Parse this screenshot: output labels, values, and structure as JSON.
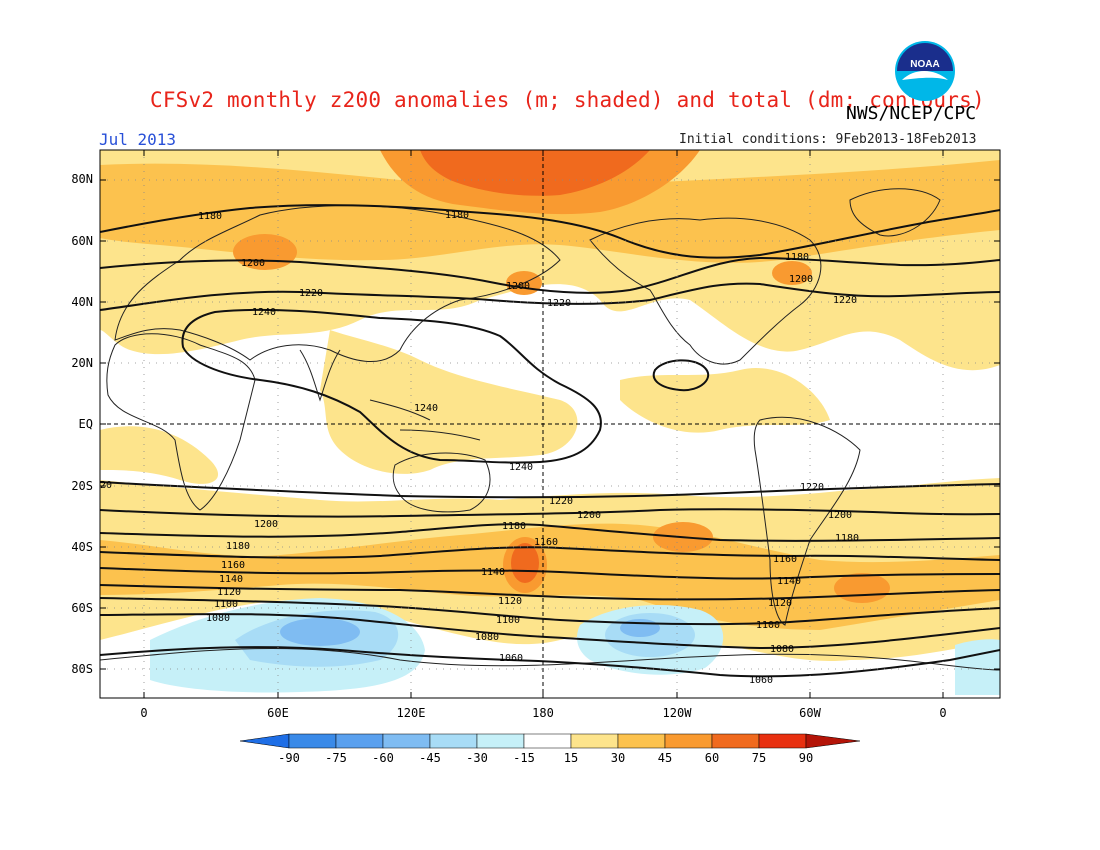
{
  "header": {
    "title": "CFSv2 monthly z200 anomalies (m; shaded) and total (dm; contours)",
    "agency": "NWS/NCEP/CPC",
    "month": "Jul 2013",
    "initial_conditions": "Initial conditions: 9Feb2013-18Feb2013",
    "logo_icon": "noaa-logo-icon",
    "logo_text": "NOAA"
  },
  "axes": {
    "lat_labels": [
      "80N",
      "60N",
      "40N",
      "20N",
      "EQ",
      "20S",
      "40S",
      "60S",
      "80S"
    ],
    "lon_labels": [
      "0",
      "60E",
      "120E",
      "180",
      "120W",
      "60W",
      "0"
    ]
  },
  "colorbar": {
    "labels": [
      "-90",
      "-75",
      "-60",
      "-45",
      "-30",
      "-15",
      "15",
      "30",
      "45",
      "60",
      "75",
      "90"
    ],
    "colors": [
      "#1e6ee6",
      "#3a8ae8",
      "#5aa0ee",
      "#7fbcf2",
      "#a8dcf6",
      "#c6f0f8",
      "#ffffff",
      "#fde48c",
      "#fcc24e",
      "#f99a30",
      "#f06a1e",
      "#e83010",
      "#b41408"
    ]
  },
  "contour_labels": {
    "north": [
      "1180",
      "1180",
      "1180",
      "1200",
      "1200",
      "1200",
      "1220",
      "1220",
      "1220",
      "1240",
      "1240"
    ],
    "south": [
      "1240",
      "20",
      "1220",
      "1220",
      "1200",
      "1200",
      "1200",
      "1180",
      "1180",
      "1180",
      "1160",
      "1160",
      "1160",
      "1140",
      "1140",
      "1140",
      "1120",
      "1120",
      "1120",
      "1100",
      "1100",
      "1100",
      "1080",
      "1080",
      "1080",
      "1060",
      "1060"
    ]
  }
}
